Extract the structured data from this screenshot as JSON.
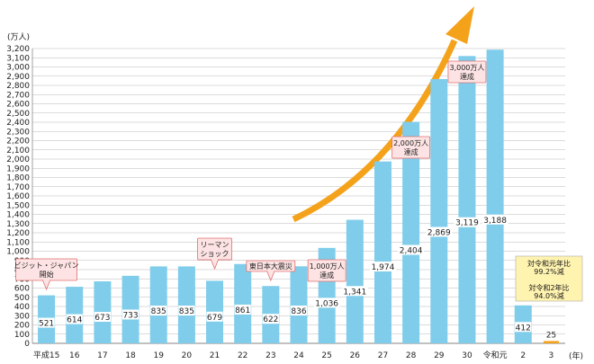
{
  "chart_data": {
    "type": "bar",
    "y_unit": "(万人)",
    "x_unit": "(年)",
    "categories": [
      "平成15",
      "16",
      "17",
      "18",
      "19",
      "20",
      "21",
      "22",
      "23",
      "24",
      "25",
      "26",
      "27",
      "28",
      "29",
      "30",
      "令和元",
      "2",
      "3"
    ],
    "values": [
      521,
      614,
      673,
      733,
      835,
      835,
      679,
      861,
      622,
      836,
      1036,
      1341,
      1974,
      2404,
      2869,
      3119,
      3188,
      412,
      25
    ],
    "value_labels": [
      "521",
      "614",
      "673",
      "733",
      "835",
      "835",
      "679",
      "861",
      "622",
      "836",
      "1,036",
      "1,341",
      "1,974",
      "2,404",
      "2,869",
      "3,119",
      "3,188",
      "412",
      "25"
    ],
    "ylim": [
      0,
      3200
    ],
    "yticks": [
      0,
      100,
      200,
      300,
      400,
      500,
      600,
      700,
      800,
      900,
      1000,
      1100,
      1200,
      1300,
      1400,
      1500,
      1600,
      1700,
      1800,
      1900,
      2000,
      2100,
      2200,
      2300,
      2400,
      2500,
      2600,
      2700,
      2800,
      2900,
      3000,
      3100,
      3200
    ],
    "ytick_labels": [
      "0",
      "100",
      "200",
      "300",
      "400",
      "500",
      "600",
      "700",
      "800",
      "900",
      "1,000",
      "1,100",
      "1,200",
      "1,300",
      "1,400",
      "1,500",
      "1,600",
      "1,700",
      "1,800",
      "1,900",
      "2,000",
      "2,100",
      "2,200",
      "2,300",
      "2,400",
      "2,500",
      "2,600",
      "2,700",
      "2,800",
      "2,900",
      "3,000",
      "3,100",
      "3,200"
    ],
    "grid": true,
    "colors": {
      "bar": "#7fcdea",
      "bar_last": "#f5a21b",
      "arrow": "#f5a21b",
      "callout_bg": "#fde3e3",
      "callout_border": "#e07070",
      "box_bg": "#fff3b0"
    },
    "annotations": [
      {
        "category": "平成15",
        "lines": [
          "ビジット・ジャパン",
          "開始"
        ]
      },
      {
        "category": "21",
        "lines": [
          "リーマン",
          "ショック"
        ]
      },
      {
        "category": "23",
        "lines": [
          "東日本大震災"
        ]
      },
      {
        "category": "25",
        "lines": [
          "1,000万人",
          "達成"
        ]
      },
      {
        "category": "28",
        "lines": [
          "2,000万人",
          "達成"
        ]
      },
      {
        "category": "30",
        "lines": [
          "3,000万人",
          "達成"
        ]
      }
    ],
    "comparison_box": {
      "lines": [
        "対令和元年比",
        "99.2%減",
        "",
        "対令和2年比",
        "94.0%減"
      ]
    }
  }
}
